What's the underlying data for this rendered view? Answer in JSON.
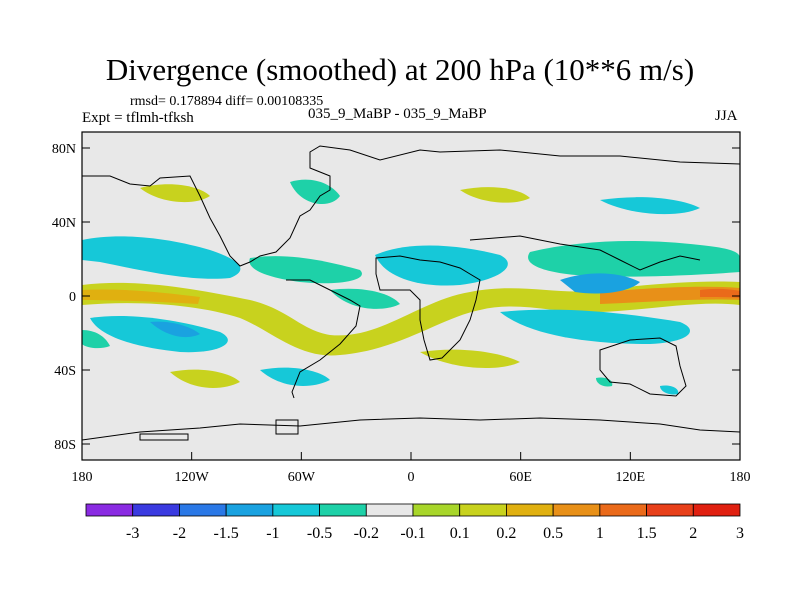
{
  "title": "Divergence (smoothed) at 200 hPa (10**6 m/s)",
  "stats_line": "rmsd= 0.178894   diff= 0.00108335",
  "experiment": "Expt = tflmh-tfksh",
  "case_label": "035_9_MaBP - 035_9_MaBP",
  "season": "JJA",
  "lat_ticks": [
    {
      "label": "80N",
      "lat": 80
    },
    {
      "label": "40N",
      "lat": 40
    },
    {
      "label": "0",
      "lat": 0
    },
    {
      "label": "40S",
      "lat": -40
    },
    {
      "label": "80S",
      "lat": -80
    }
  ],
  "lon_ticks": [
    {
      "label": "180",
      "lon": -180
    },
    {
      "label": "120W",
      "lon": -120
    },
    {
      "label": "60W",
      "lon": -60
    },
    {
      "label": "0",
      "lon": 0
    },
    {
      "label": "60E",
      "lon": 60
    },
    {
      "label": "120E",
      "lon": 120
    },
    {
      "label": "180",
      "lon": 180
    }
  ],
  "colorbar": {
    "colors": [
      "#8a2be2",
      "#3a3ae0",
      "#2a78e6",
      "#1aa2e0",
      "#16c8d8",
      "#1ed1a8",
      "#e8e8e8",
      "#a8d62a",
      "#c8d21e",
      "#e0b010",
      "#e89018",
      "#ea6a1a",
      "#e8401a",
      "#e02010"
    ],
    "labels": [
      "-3",
      "-2",
      "-1.5",
      "-1",
      "-0.5",
      "-0.2",
      "-0.1",
      "0.1",
      "0.2",
      "0.5",
      "1",
      "1.5",
      "2",
      "3"
    ]
  }
}
